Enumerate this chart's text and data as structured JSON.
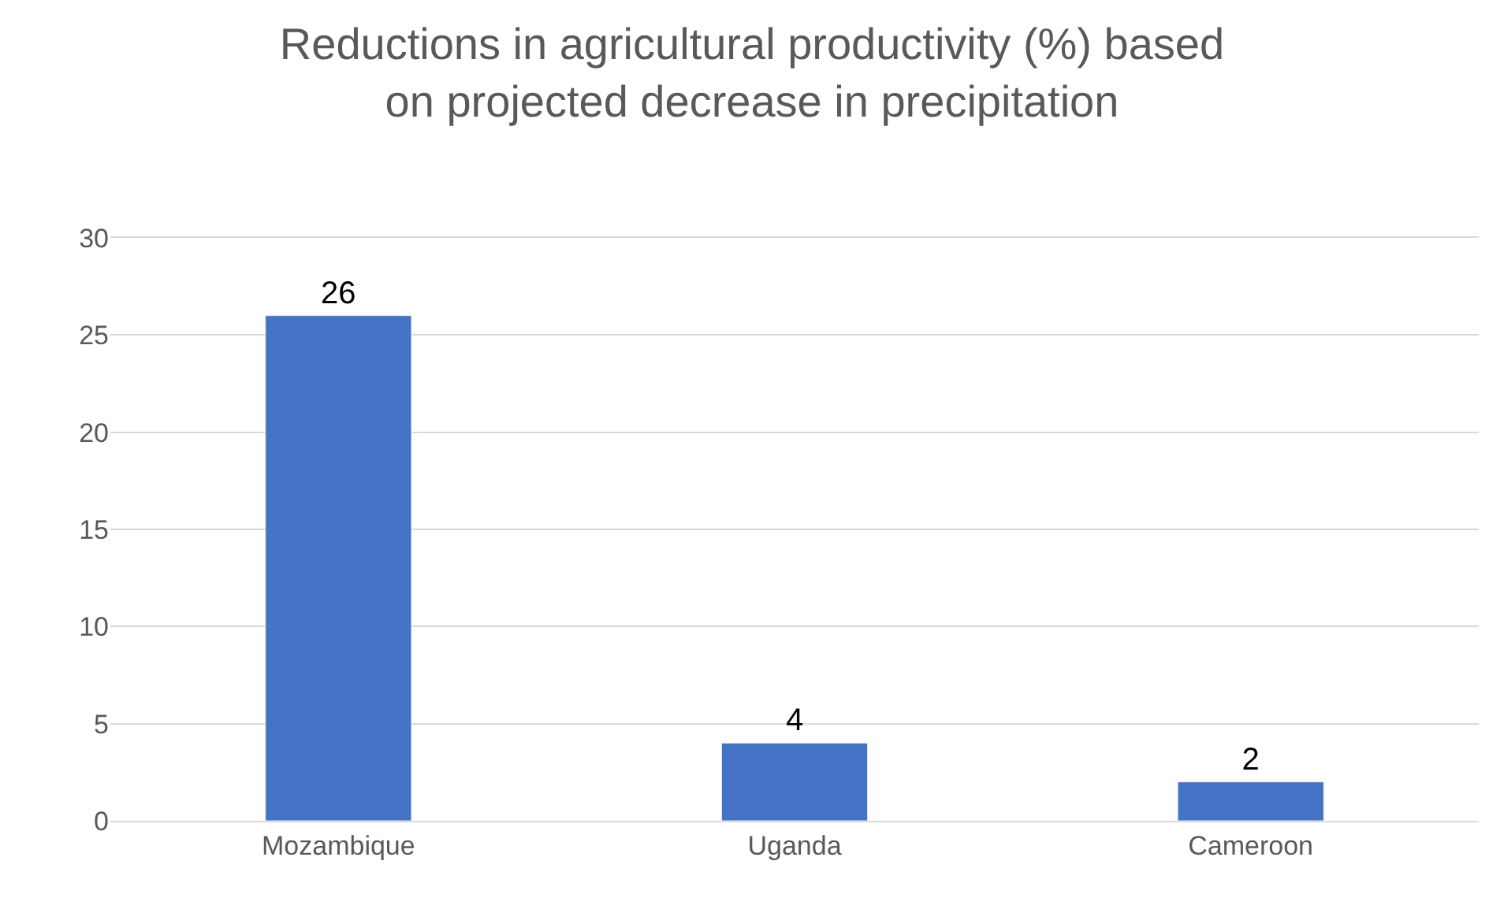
{
  "chart_data": {
    "type": "bar",
    "title": "Reductions in agricultural productivity (%) based on projected decrease in precipitation",
    "categories": [
      "Mozambique",
      "Uganda",
      "Cameroon"
    ],
    "values": [
      26,
      4,
      2
    ],
    "color": "#4472c4",
    "ylim": [
      0,
      30
    ],
    "yticks": [
      0,
      5,
      10,
      15,
      20,
      25,
      30
    ],
    "grid": "y",
    "data_labels": true,
    "legend": false
  }
}
